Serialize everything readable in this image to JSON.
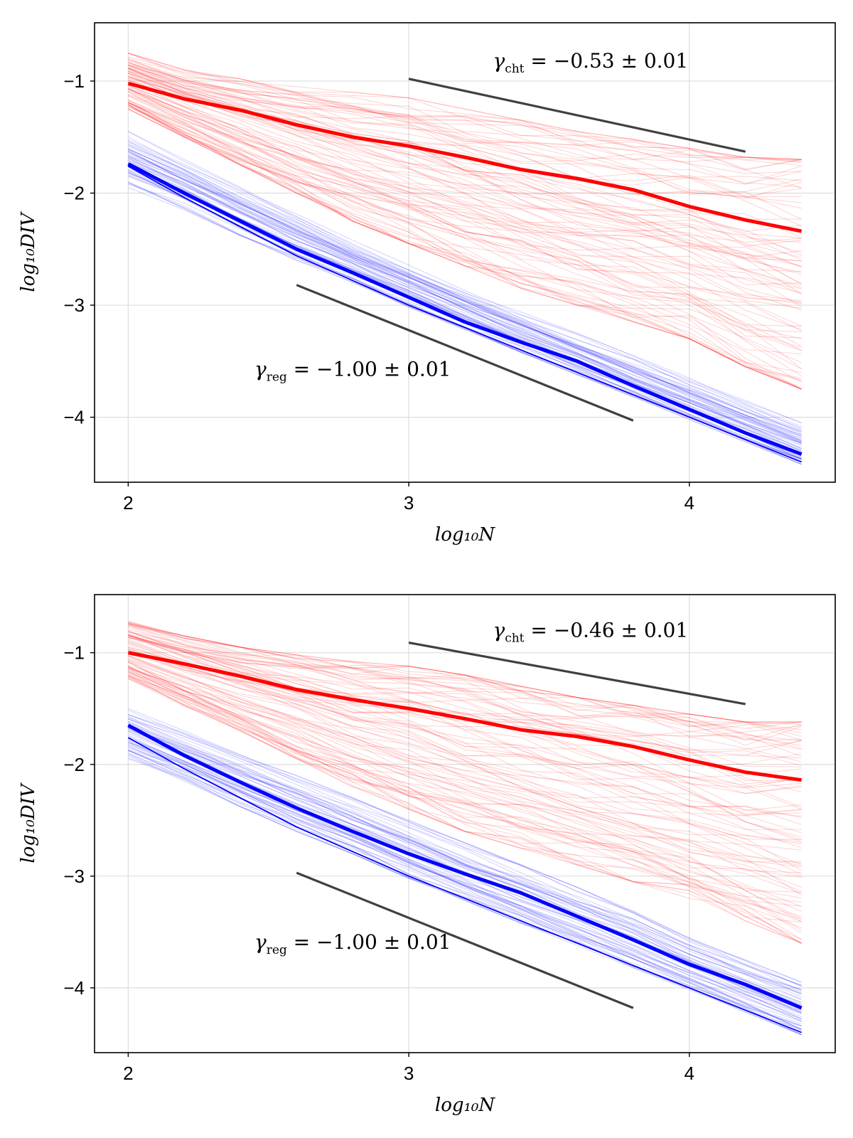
{
  "colors": {
    "cht": "#ff0000",
    "reg": "#0000ff",
    "reference": "#404040",
    "grid": "#dddddd",
    "frame": "#000000"
  },
  "chart_data": [
    {
      "type": "line",
      "xlim": [
        1.88,
        4.52
      ],
      "ylim": [
        -4.58,
        -0.48
      ],
      "xticks": [
        2,
        3,
        4
      ],
      "xtick_labels": [
        "2",
        "3",
        "4"
      ],
      "yticks": [
        -1,
        -2,
        -3,
        -4
      ],
      "ytick_labels": [
        "−1",
        "−2",
        "−3",
        "−4"
      ],
      "xlabel": "log₁₀N",
      "ylabel": "log₁₀DIV",
      "grid": true,
      "x": [
        2.0,
        2.2,
        2.4,
        2.6,
        2.8,
        3.0,
        3.2,
        3.4,
        3.6,
        3.8,
        4.0,
        4.2,
        4.4
      ],
      "series": [
        {
          "name": "cht mean",
          "color": "#ff0000",
          "values": [
            -1.02,
            -1.16,
            -1.26,
            -1.39,
            -1.5,
            -1.58,
            -1.68,
            -1.79,
            -1.87,
            -1.97,
            -2.12,
            -2.24,
            -2.34
          ]
        },
        {
          "name": "reg mean",
          "color": "#0000ff",
          "values": [
            -1.74,
            -2.0,
            -2.25,
            -2.5,
            -2.71,
            -2.93,
            -3.15,
            -3.33,
            -3.5,
            -3.72,
            -3.93,
            -4.14,
            -4.33
          ]
        },
        {
          "name": "reg lower",
          "color": "#0000ff",
          "values": [
            -1.76,
            -2.04,
            -2.3,
            -2.56,
            -2.78,
            -3.0,
            -3.2,
            -3.4,
            -3.6,
            -3.8,
            -4.0,
            -4.2,
            -4.4
          ]
        }
      ],
      "bands": {
        "cht_upper": [
          -0.75,
          -0.9,
          -0.98,
          -1.05,
          -1.1,
          -1.15,
          -1.25,
          -1.35,
          -1.45,
          -1.52,
          -1.6,
          -1.68,
          -1.7
        ],
        "cht_lower": [
          -1.25,
          -1.5,
          -1.75,
          -2.0,
          -2.25,
          -2.45,
          -2.65,
          -2.85,
          -3.0,
          -3.15,
          -3.3,
          -3.55,
          -3.75
        ],
        "reg_upper": [
          -1.45,
          -1.7,
          -1.95,
          -2.18,
          -2.42,
          -2.63,
          -2.85,
          -3.05,
          -3.25,
          -3.45,
          -3.65,
          -3.85,
          -4.05
        ],
        "reg_lower": [
          -1.95,
          -2.15,
          -2.38,
          -2.6,
          -2.8,
          -3.02,
          -3.22,
          -3.42,
          -3.62,
          -3.82,
          -4.02,
          -4.22,
          -4.42
        ]
      },
      "reference_lines": [
        {
          "name": "gamma-cht-line",
          "x": [
            3.0,
            4.2
          ],
          "y": [
            -0.98,
            -1.63
          ]
        },
        {
          "name": "gamma-reg-line",
          "x": [
            2.6,
            3.8
          ],
          "y": [
            -2.82,
            -4.03
          ]
        }
      ],
      "annotations": [
        {
          "name": "gamma-cht",
          "symbol": "γ",
          "sub": "cht",
          "value": " = −0.53 ± 0.01",
          "x": 3.3,
          "y": -0.88
        },
        {
          "name": "gamma-reg",
          "symbol": "γ",
          "sub": "reg",
          "value": " = −1.00 ± 0.01",
          "x": 2.45,
          "y": -3.63
        }
      ],
      "seed": 11
    },
    {
      "type": "line",
      "xlim": [
        1.88,
        4.52
      ],
      "ylim": [
        -4.58,
        -0.48
      ],
      "xticks": [
        2,
        3,
        4
      ],
      "xtick_labels": [
        "2",
        "3",
        "4"
      ],
      "yticks": [
        -1,
        -2,
        -3,
        -4
      ],
      "ytick_labels": [
        "−1",
        "−2",
        "−3",
        "−4"
      ],
      "xlabel": "log₁₀N",
      "ylabel": "log₁₀DIV",
      "grid": true,
      "x": [
        2.0,
        2.2,
        2.4,
        2.6,
        2.8,
        3.0,
        3.2,
        3.4,
        3.6,
        3.8,
        4.0,
        4.2,
        4.4
      ],
      "series": [
        {
          "name": "cht mean",
          "color": "#ff0000",
          "values": [
            -1.0,
            -1.1,
            -1.21,
            -1.33,
            -1.42,
            -1.5,
            -1.59,
            -1.69,
            -1.75,
            -1.84,
            -1.96,
            -2.07,
            -2.14
          ]
        },
        {
          "name": "reg mean",
          "color": "#0000ff",
          "values": [
            -1.65,
            -1.92,
            -2.16,
            -2.39,
            -2.6,
            -2.8,
            -2.98,
            -3.15,
            -3.36,
            -3.57,
            -3.79,
            -3.97,
            -4.18
          ]
        },
        {
          "name": "reg lower",
          "color": "#0000ff",
          "values": [
            -1.76,
            -2.04,
            -2.3,
            -2.56,
            -2.78,
            -3.0,
            -3.2,
            -3.4,
            -3.6,
            -3.8,
            -4.0,
            -4.2,
            -4.4
          ]
        }
      ],
      "bands": {
        "cht_upper": [
          -0.72,
          -0.85,
          -0.95,
          -1.02,
          -1.08,
          -1.12,
          -1.2,
          -1.3,
          -1.4,
          -1.47,
          -1.55,
          -1.62,
          -1.62
        ],
        "cht_lower": [
          -1.25,
          -1.48,
          -1.7,
          -1.95,
          -2.2,
          -2.4,
          -2.6,
          -2.75,
          -2.9,
          -3.05,
          -3.2,
          -3.4,
          -3.6
        ],
        "reg_upper": [
          -1.5,
          -1.7,
          -1.9,
          -2.1,
          -2.3,
          -2.5,
          -2.7,
          -2.9,
          -3.1,
          -3.3,
          -3.55,
          -3.75,
          -3.95
        ],
        "reg_lower": [
          -1.95,
          -2.15,
          -2.38,
          -2.6,
          -2.8,
          -3.02,
          -3.22,
          -3.42,
          -3.62,
          -3.82,
          -4.02,
          -4.22,
          -4.42
        ]
      },
      "reference_lines": [
        {
          "name": "gamma-cht-line",
          "x": [
            3.0,
            4.2
          ],
          "y": [
            -0.91,
            -1.46
          ]
        },
        {
          "name": "gamma-reg-line",
          "x": [
            2.6,
            3.8
          ],
          "y": [
            -2.97,
            -4.18
          ]
        }
      ],
      "annotations": [
        {
          "name": "gamma-cht",
          "symbol": "γ",
          "sub": "cht",
          "value": " = −0.46 ± 0.01",
          "x": 3.3,
          "y": -0.86
        },
        {
          "name": "gamma-reg",
          "symbol": "γ",
          "sub": "reg",
          "value": " = −1.00 ± 0.01",
          "x": 2.45,
          "y": -3.65
        }
      ],
      "seed": 29
    }
  ]
}
